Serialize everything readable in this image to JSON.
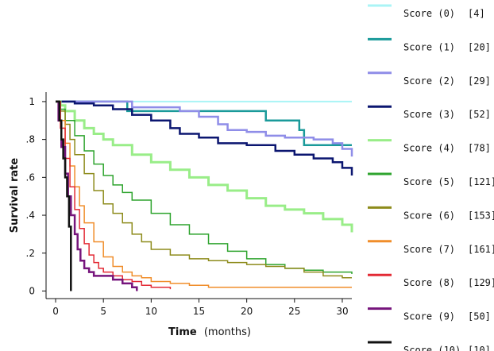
{
  "chart_data": {
    "type": "line",
    "step": true,
    "xlabel": "Time",
    "xlabel_unit": "(months)",
    "ylabel": "Survival rate",
    "xlim": [
      -1,
      31
    ],
    "ylim": [
      -0.04,
      1.05
    ],
    "x_ticks": [
      0,
      5,
      10,
      15,
      20,
      25,
      30
    ],
    "x_tick_labels": [
      "0",
      "5",
      "10",
      "15",
      "20",
      "25",
      "30"
    ],
    "y_ticks": [
      0,
      0.2,
      0.4,
      0.6,
      0.8,
      1
    ],
    "y_tick_labels": [
      "0",
      ".2",
      ".4",
      ".6",
      ".8",
      "1"
    ],
    "grid": false,
    "legend_position": "right",
    "series": [
      {
        "name": "Score (0)",
        "n": "[4]",
        "color": "#aaf4f6",
        "width": 2,
        "x": [
          0,
          31
        ],
        "y": [
          1,
          1
        ]
      },
      {
        "name": "Score (1)",
        "n": "[20]",
        "color": "#1a9a9a",
        "width": 2.5,
        "x": [
          0,
          7.5,
          22,
          25.5,
          26,
          31
        ],
        "y": [
          1,
          0.95,
          0.9,
          0.85,
          0.77,
          0.77
        ]
      },
      {
        "name": "Score (2)",
        "n": "[29]",
        "color": "#8f8de8",
        "width": 2.5,
        "x": [
          0,
          8,
          13,
          15,
          17,
          18,
          20,
          22,
          24,
          27,
          29,
          30,
          31
        ],
        "y": [
          1,
          0.97,
          0.95,
          0.92,
          0.88,
          0.85,
          0.84,
          0.82,
          0.81,
          0.8,
          0.78,
          0.75,
          0.71
        ]
      },
      {
        "name": "Score (3)",
        "n": "[52]",
        "color": "#0b1670",
        "width": 2.5,
        "x": [
          0,
          2,
          4,
          6,
          8,
          10,
          12,
          13,
          15,
          17,
          20,
          23,
          25,
          27,
          29,
          30,
          31
        ],
        "y": [
          1,
          0.99,
          0.98,
          0.96,
          0.93,
          0.9,
          0.86,
          0.83,
          0.81,
          0.78,
          0.77,
          0.74,
          0.72,
          0.7,
          0.68,
          0.65,
          0.61
        ]
      },
      {
        "name": "Score (4)",
        "n": "[78]",
        "color": "#99ed88",
        "width": 3,
        "x": [
          0,
          0.5,
          1,
          2,
          3,
          4,
          5,
          6,
          8,
          10,
          12,
          14,
          16,
          18,
          20,
          22,
          24,
          26,
          28,
          30,
          31
        ],
        "y": [
          1,
          0.98,
          0.95,
          0.9,
          0.86,
          0.83,
          0.8,
          0.77,
          0.72,
          0.68,
          0.64,
          0.6,
          0.56,
          0.53,
          0.49,
          0.45,
          0.43,
          0.41,
          0.38,
          0.35,
          0.31
        ]
      },
      {
        "name": "Score (5)",
        "n": "[121]",
        "color": "#2ea42e",
        "width": 1.5,
        "x": [
          0,
          0.5,
          1,
          2,
          3,
          4,
          5,
          6,
          7,
          8,
          10,
          12,
          14,
          16,
          18,
          20,
          22,
          24,
          26,
          28,
          30,
          31
        ],
        "y": [
          1,
          0.96,
          0.9,
          0.82,
          0.74,
          0.67,
          0.61,
          0.56,
          0.52,
          0.48,
          0.41,
          0.35,
          0.3,
          0.25,
          0.21,
          0.17,
          0.14,
          0.12,
          0.11,
          0.1,
          0.1,
          0.09
        ]
      },
      {
        "name": "Score (6)",
        "n": "[153]",
        "color": "#8d8b1b",
        "width": 1.5,
        "x": [
          0,
          0.5,
          1,
          1.5,
          2,
          3,
          4,
          5,
          6,
          7,
          8,
          9,
          10,
          12,
          14,
          16,
          18,
          20,
          22,
          24,
          26,
          28,
          30,
          31
        ],
        "y": [
          1,
          0.95,
          0.88,
          0.8,
          0.72,
          0.62,
          0.53,
          0.46,
          0.41,
          0.36,
          0.3,
          0.26,
          0.22,
          0.19,
          0.17,
          0.16,
          0.15,
          0.14,
          0.13,
          0.12,
          0.1,
          0.08,
          0.07,
          0.07
        ]
      },
      {
        "name": "Score (7)",
        "n": "[161]",
        "color": "#f08d2a",
        "width": 1.5,
        "x": [
          0,
          0.5,
          1,
          1.5,
          2,
          2.5,
          3,
          4,
          5,
          6,
          7,
          8,
          9,
          10,
          12,
          14,
          16,
          20,
          31
        ],
        "y": [
          1,
          0.9,
          0.78,
          0.66,
          0.55,
          0.45,
          0.36,
          0.26,
          0.18,
          0.13,
          0.1,
          0.08,
          0.07,
          0.05,
          0.04,
          0.03,
          0.02,
          0.02,
          0.02
        ]
      },
      {
        "name": "Score (8)",
        "n": "[129]",
        "color": "#e32a35",
        "width": 1.5,
        "x": [
          0,
          0.5,
          1,
          1.5,
          2,
          2.5,
          3,
          3.5,
          4,
          4.5,
          5,
          6,
          7,
          8,
          9,
          10,
          12
        ],
        "y": [
          1,
          0.86,
          0.7,
          0.55,
          0.43,
          0.33,
          0.25,
          0.19,
          0.15,
          0.12,
          0.1,
          0.08,
          0.06,
          0.05,
          0.03,
          0.02,
          0.01
        ]
      },
      {
        "name": "Score (9)",
        "n": "[50]",
        "color": "#76147c",
        "width": 2.5,
        "x": [
          0,
          0.3,
          0.6,
          1,
          1.3,
          1.6,
          2,
          2.3,
          2.6,
          3,
          3.5,
          4,
          4.5,
          5,
          6,
          7,
          8,
          8.5,
          8.5
        ],
        "y": [
          1,
          0.9,
          0.76,
          0.62,
          0.5,
          0.4,
          0.3,
          0.22,
          0.16,
          0.12,
          0.1,
          0.08,
          0.08,
          0.08,
          0.06,
          0.04,
          0.02,
          0.02,
          0
        ]
      },
      {
        "name": "Score (10)",
        "n": "[10]",
        "color": "#111111",
        "width": 2.5,
        "x": [
          0,
          0.4,
          0.6,
          0.8,
          1,
          1.2,
          1.4,
          1.6,
          1.6
        ],
        "y": [
          1,
          0.9,
          0.8,
          0.7,
          0.6,
          0.5,
          0.34,
          0.3,
          0
        ]
      }
    ]
  }
}
